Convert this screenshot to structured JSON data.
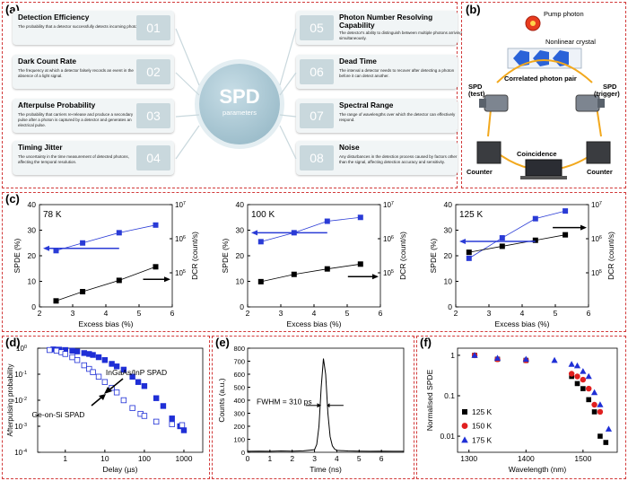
{
  "panels": {
    "a": "(a)",
    "b": "(b)",
    "c": "(c)",
    "d": "(d)",
    "e": "(e)",
    "f": "(f)"
  },
  "panel_a": {
    "hub_title": "SPD",
    "hub_subtitle": "parameters",
    "cards": [
      {
        "num": "01",
        "title": "Detection Efficiency",
        "desc": "The probability that a detector successfully detects incoming photons."
      },
      {
        "num": "02",
        "title": "Dark Count Rate",
        "desc": "The frequency at which a detector falsely records an event in the absence of a light signal."
      },
      {
        "num": "03",
        "title": "Afterpulse Probability",
        "desc": "The probability that carriers re-release and produce a secondary pulse after a photon is captured by a detector and generates an electrical pulse."
      },
      {
        "num": "04",
        "title": "Timing Jitter",
        "desc": "The uncertainty in the time measurement of detected photons, affecting the temporal resolution."
      },
      {
        "num": "05",
        "title": "Photon Number Resolving Capability",
        "desc": "The detector's ability to distinguish between multiple photons arriving simultaneously."
      },
      {
        "num": "06",
        "title": "Dead Time",
        "desc": "The interval a detector needs to recover after detecting a photon before it can detect another."
      },
      {
        "num": "07",
        "title": "Spectral Range",
        "desc": "The range of wavelengths over which the detector can effectively respond."
      },
      {
        "num": "08",
        "title": "Noise",
        "desc": "Any disturbances in the detection process caused by factors other than the signal, affecting detection accuracy and sensitivity."
      }
    ]
  },
  "panel_b": {
    "pump": "Pump photon",
    "crystal": "Nonlinear crystal",
    "pair": "Correlated photon pair",
    "spd_test": "SPD",
    "spd_test2": "(test)",
    "spd_trig": "SPD",
    "spd_trig2": "(trigger)",
    "coincidence": "Coincidence",
    "counter_left": "Counter",
    "counter_right": "Counter"
  },
  "chart_data": [
    {
      "type": "line",
      "panel": "c",
      "annotation": "78 K",
      "xlabel": "Excess bias (%)",
      "ylabel": "SPDE (%)",
      "y2label": "DCR (count/s)",
      "xlim": [
        2,
        6
      ],
      "ylim": [
        0,
        40
      ],
      "y2scale": "log",
      "y2lim": [
        10000.0,
        10000000.0
      ],
      "xticks": [
        2,
        3,
        4,
        5,
        6
      ],
      "yticks": [
        0,
        10,
        20,
        30,
        40
      ],
      "series": [
        {
          "axis": "left",
          "color": "#2a3bd6",
          "x": [
            2.5,
            3.3,
            4.4,
            5.5
          ],
          "values": [
            22,
            25,
            29,
            32
          ]
        },
        {
          "axis": "right",
          "color": "#000000",
          "x": [
            2.5,
            3.3,
            4.4,
            5.5
          ],
          "values": [
            15000,
            28000,
            60000,
            150000
          ]
        }
      ]
    },
    {
      "type": "line",
      "panel": "c",
      "annotation": "100 K",
      "xlabel": "Excess bias (%)",
      "ylabel": "SPDE (%)",
      "y2label": "DCR (count/s)",
      "xlim": [
        2,
        6
      ],
      "ylim": [
        0,
        40
      ],
      "y2scale": "log",
      "y2lim": [
        10000.0,
        10000000.0
      ],
      "xticks": [
        2,
        3,
        4,
        5,
        6
      ],
      "yticks": [
        0,
        10,
        20,
        30,
        40
      ],
      "series": [
        {
          "axis": "left",
          "color": "#2a3bd6",
          "x": [
            2.4,
            3.4,
            4.4,
            5.4
          ],
          "values": [
            25.5,
            29,
            33.5,
            35
          ]
        },
        {
          "axis": "right",
          "color": "#000000",
          "x": [
            2.4,
            3.4,
            4.4,
            5.4
          ],
          "values": [
            55000,
            90000,
            130000,
            180000
          ]
        }
      ]
    },
    {
      "type": "line",
      "panel": "c",
      "annotation": "125 K",
      "xlabel": "Excess bias (%)",
      "ylabel": "SPDE (%)",
      "y2label": "DCR (count/s)",
      "xlim": [
        2,
        6
      ],
      "ylim": [
        0,
        40
      ],
      "y2scale": "log",
      "y2lim": [
        10000.0,
        10000000.0
      ],
      "xticks": [
        2,
        3,
        4,
        5,
        6
      ],
      "yticks": [
        0,
        10,
        20,
        30,
        40
      ],
      "series": [
        {
          "axis": "left",
          "color": "#2a3bd6",
          "x": [
            2.4,
            3.4,
            4.4,
            5.3
          ],
          "values": [
            19,
            27,
            34.5,
            37.5
          ]
        },
        {
          "axis": "right",
          "color": "#000000",
          "x": [
            2.4,
            3.4,
            4.4,
            5.3
          ],
          "values": [
            400000,
            600000,
            900000,
            1300000
          ]
        }
      ]
    },
    {
      "type": "scatter",
      "panel": "d",
      "xlabel": "Delay (µs)",
      "ylabel": "Afterpulsing probability",
      "xscale": "log",
      "yscale": "log",
      "xlim": [
        0.2,
        3000
      ],
      "ylim": [
        0.0001,
        1
      ],
      "series": [
        {
          "name": "InGaAs/InP SPAD",
          "marker": "filled",
          "color": "#1f2fd6",
          "x": [
            0.5,
            0.7,
            1,
            1.5,
            2,
            3,
            4,
            5,
            7,
            10,
            15,
            20,
            30,
            50,
            70,
            100,
            200,
            300,
            500,
            800,
            1000
          ],
          "values": [
            0.9,
            0.88,
            0.85,
            0.8,
            0.75,
            0.65,
            0.6,
            0.55,
            0.45,
            0.35,
            0.25,
            0.2,
            0.15,
            0.08,
            0.05,
            0.035,
            0.012,
            0.006,
            0.002,
            0.001,
            0.0007
          ]
        },
        {
          "name": "Ge-on-Si SPAD",
          "marker": "open",
          "color": "#1f2fd6",
          "x": [
            0.4,
            0.6,
            0.8,
            1,
            1.5,
            2,
            3,
            4,
            5,
            7,
            10,
            15,
            20,
            30,
            50,
            80,
            100,
            200,
            500,
            900
          ],
          "values": [
            0.85,
            0.8,
            0.7,
            0.6,
            0.45,
            0.35,
            0.22,
            0.16,
            0.12,
            0.08,
            0.05,
            0.03,
            0.02,
            0.01,
            0.005,
            0.003,
            0.0025,
            0.0015,
            0.0012,
            0.0011
          ]
        }
      ]
    },
    {
      "type": "line",
      "panel": "e",
      "xlabel": "Time (ns)",
      "ylabel": "Counts (a.u.)",
      "annotation": "FWHM = 310 ps",
      "xlim": [
        0,
        7
      ],
      "ylim": [
        0,
        800
      ],
      "xticks": [
        0,
        1,
        2,
        3,
        4,
        5,
        6
      ],
      "yticks": [
        0,
        100,
        200,
        300,
        400,
        500,
        600,
        700,
        800
      ],
      "series": [
        {
          "color": "#000000",
          "x": [
            0,
            0.5,
            1,
            1.5,
            2,
            2.5,
            3,
            3.1,
            3.2,
            3.3,
            3.4,
            3.5,
            3.6,
            3.7,
            3.8,
            3.9,
            4,
            4.5,
            5,
            5.5,
            6,
            6.5,
            7
          ],
          "values": [
            8,
            9,
            8,
            10,
            9,
            11,
            20,
            60,
            200,
            500,
            720,
            600,
            300,
            120,
            50,
            25,
            15,
            10,
            9,
            8,
            9,
            8,
            8
          ]
        }
      ]
    },
    {
      "type": "scatter",
      "panel": "f",
      "xlabel": "Wavelength (nm)",
      "ylabel": "Normalised SPDE",
      "yscale": "log",
      "xlim": [
        1280,
        1560
      ],
      "ylim": [
        0.004,
        1.5
      ],
      "xticks": [
        1300,
        1400,
        1500
      ],
      "series": [
        {
          "name": "125 K",
          "marker": "square",
          "color": "#000000",
          "x": [
            1310,
            1350,
            1400,
            1480,
            1490,
            1500,
            1510,
            1520,
            1530,
            1540
          ],
          "values": [
            1,
            0.8,
            0.75,
            0.3,
            0.2,
            0.15,
            0.08,
            0.04,
            0.01,
            0.007
          ]
        },
        {
          "name": "150 K",
          "marker": "circle",
          "color": "#e02020",
          "x": [
            1310,
            1350,
            1400,
            1480,
            1490,
            1500,
            1510,
            1520,
            1530
          ],
          "values": [
            1,
            0.8,
            0.75,
            0.35,
            0.3,
            0.25,
            0.15,
            0.06,
            0.04
          ]
        },
        {
          "name": "175 K",
          "marker": "triangle",
          "color": "#1f2fd6",
          "x": [
            1310,
            1350,
            1400,
            1450,
            1480,
            1490,
            1500,
            1510,
            1520,
            1530,
            1545
          ],
          "values": [
            1,
            0.85,
            0.8,
            0.75,
            0.6,
            0.55,
            0.4,
            0.3,
            0.12,
            0.06,
            0.015
          ]
        }
      ]
    }
  ]
}
